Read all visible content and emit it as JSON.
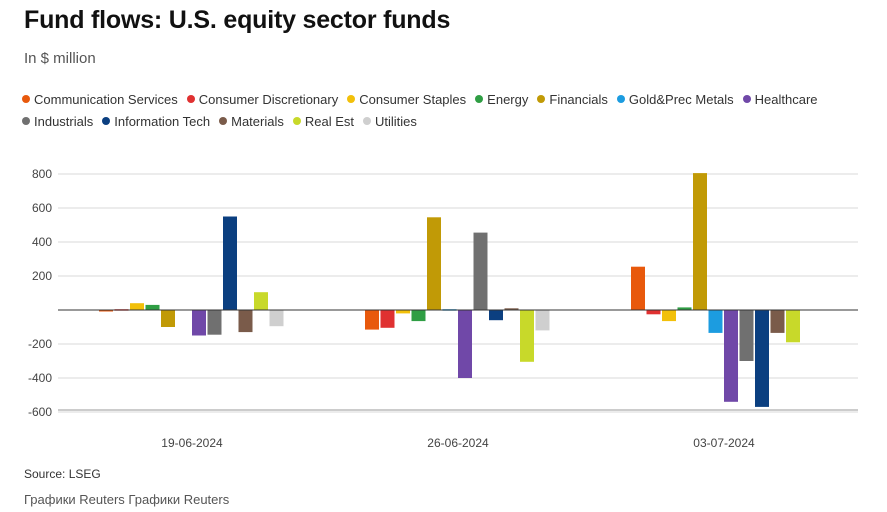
{
  "title": "Fund flows: U.S. equity sector funds",
  "subtitle": "In $ million",
  "source": "Source: LSEG",
  "credit": "Графики Reuters Графики Reuters",
  "colors": {
    "Communication Services": "#e8590c",
    "Consumer Discretionary": "#e03131",
    "Consumer Staples": "#f2c00a",
    "Energy": "#2f9e44",
    "Financials": "#c19a06",
    "Gold&Prec Metals": "#1c9ce0",
    "Healthcare": "#7048a8",
    "Industrials": "#707070",
    "Information Tech": "#0b3f80",
    "Materials": "#7a5b4a",
    "Real Est": "#c8d92a",
    "Utilities": "#cfcfcf"
  },
  "chart_data": {
    "type": "bar",
    "title": "Fund flows: U.S. equity sector funds",
    "ylabel": "In $ million",
    "xlabel": "",
    "ylim": [
      -600,
      800
    ],
    "yticks": [
      800,
      600,
      400,
      200,
      -200,
      -400,
      -600
    ],
    "grid": true,
    "legend_position": "top",
    "categories": [
      "19-06-2024",
      "26-06-2024",
      "03-07-2024"
    ],
    "series": [
      {
        "name": "Communication Services",
        "values": [
          -3,
          -115,
          255
        ]
      },
      {
        "name": "Consumer Discretionary",
        "values": [
          5,
          -105,
          -25
        ]
      },
      {
        "name": "Consumer Staples",
        "values": [
          40,
          -20,
          -65
        ]
      },
      {
        "name": "Energy",
        "values": [
          30,
          -65,
          15
        ]
      },
      {
        "name": "Financials",
        "values": [
          -100,
          545,
          805
        ]
      },
      {
        "name": "Gold&Prec Metals",
        "values": [
          0,
          5,
          -135
        ]
      },
      {
        "name": "Healthcare",
        "values": [
          -150,
          -400,
          -540
        ]
      },
      {
        "name": "Industrials",
        "values": [
          -145,
          455,
          -300
        ]
      },
      {
        "name": "Information Tech",
        "values": [
          550,
          -60,
          -570
        ]
      },
      {
        "name": "Materials",
        "values": [
          -130,
          10,
          -135
        ]
      },
      {
        "name": "Real Est",
        "values": [
          105,
          -305,
          -190
        ]
      },
      {
        "name": "Utilities",
        "values": [
          -95,
          -120,
          0
        ]
      }
    ]
  }
}
